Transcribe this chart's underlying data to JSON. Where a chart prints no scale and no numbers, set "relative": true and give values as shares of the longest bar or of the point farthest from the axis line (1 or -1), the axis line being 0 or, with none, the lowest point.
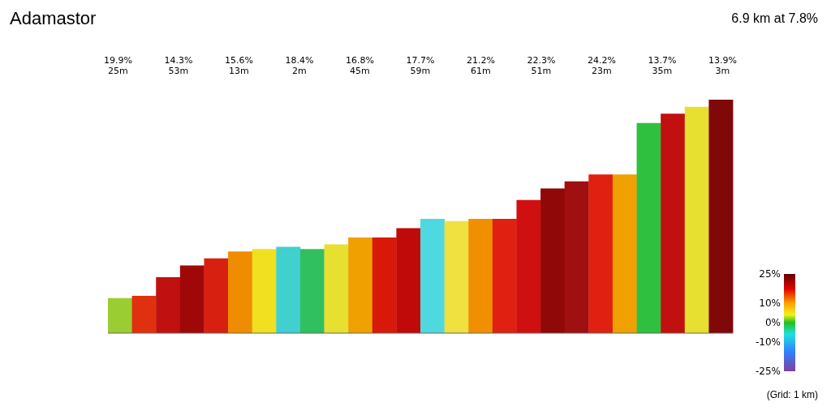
{
  "chart_data": {
    "type": "bar",
    "title": "Adamastor",
    "subtitle": "6.9 km at 7.8%",
    "relative": true,
    "categories": [
      null,
      null,
      null,
      null,
      null,
      null,
      null,
      null,
      null,
      null,
      null,
      null,
      null,
      null,
      null,
      null,
      null,
      null,
      null,
      null,
      null,
      null,
      null,
      null,
      null,
      null
    ],
    "values": [
      0.15,
      0.16,
      0.24,
      0.29,
      0.32,
      0.35,
      0.36,
      0.37,
      0.36,
      0.38,
      0.41,
      0.41,
      0.45,
      0.49,
      0.48,
      0.49,
      0.49,
      0.57,
      0.62,
      0.65,
      0.68,
      0.68,
      0.9,
      0.94,
      0.97,
      1
    ],
    "colors": [
      "#9acd32",
      "#e03010",
      "#c01010",
      "#a00808",
      "#d82010",
      "#f08c00",
      "#f0e020",
      "#40d0d0",
      "#30c060",
      "#e8e030",
      "#f0a000",
      "#d81808",
      "#c00a0a",
      "#50d8e0",
      "#f0e040",
      "#f09000",
      "#e02010",
      "#d01010",
      "#900808",
      "#a01010",
      "#e02010",
      "#f0a000",
      "#30c040",
      "#c01010",
      "#e8e030",
      "#800808"
    ],
    "clabel": null,
    "clim": [
      -25,
      25
    ],
    "cticks": [
      {
        "value": 25,
        "label": "25%"
      },
      {
        "value": 10,
        "label": "10%"
      },
      {
        "value": 0,
        "label": "0%"
      },
      {
        "value": -10,
        "label": "-10%"
      },
      {
        "value": -25,
        "label": "-25%"
      }
    ],
    "annotations": [
      "19.9%\n25m",
      "14.3%\n53m",
      "15.6%\n13m",
      "18.4%\n2m",
      "16.8%\n45m",
      "17.7%\n59m",
      "21.2%\n61m",
      "22.3%\n51m",
      "24.2%\n23m",
      "13.7%\n35m",
      "13.9%\n3m",
      "(Grid: 1 km)"
    ],
    "tick_labels": false
  }
}
